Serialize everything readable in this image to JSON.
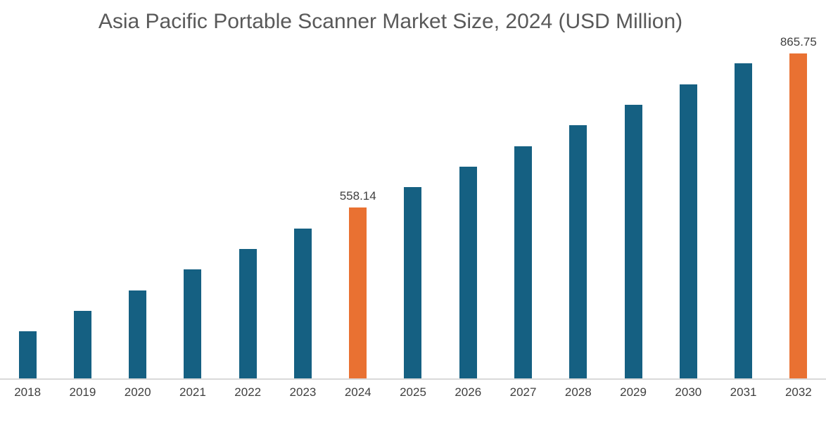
{
  "chart_data": {
    "type": "bar",
    "title": "Asia Pacific Portable Scanner Market Size, 2024 (USD Million)",
    "xlabel": "",
    "ylabel": "",
    "categories": [
      "2018",
      "2019",
      "2020",
      "2021",
      "2022",
      "2023",
      "2024",
      "2025",
      "2026",
      "2027",
      "2028",
      "2029",
      "2030",
      "2031",
      "2032"
    ],
    "values": [
      327.4,
      365.9,
      404.3,
      442.8,
      481.2,
      519.7,
      558.14,
      596.6,
      635.0,
      673.5,
      711.9,
      750.4,
      788.9,
      827.3,
      865.75
    ],
    "data_labels": [
      "",
      "",
      "",
      "",
      "",
      "",
      "558.14",
      "",
      "",
      "",
      "",
      "",
      "",
      "",
      "865.75"
    ],
    "highlight_indices": [
      6,
      14
    ],
    "ylim": [
      240,
      880
    ],
    "gridlines": false,
    "legend": "none",
    "colors": {
      "bar_default": "#156082",
      "bar_highlight": "#E97132",
      "title_text": "#595959",
      "axis_line": "#D9D9D9",
      "tick_label": "#3F3F3F",
      "data_label": "#404040"
    }
  }
}
